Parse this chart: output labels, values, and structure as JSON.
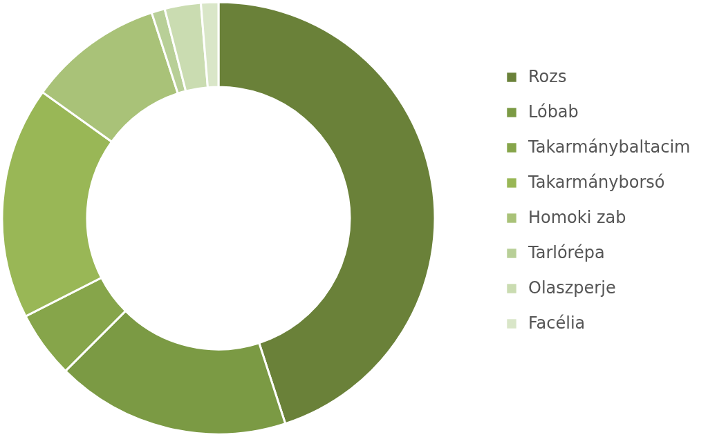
{
  "chart_data": {
    "type": "donut",
    "categories": [
      "Rozs",
      "Lóbab",
      "Takarmánybaltacim",
      "Takarmányborsó",
      "Homoki zab",
      "Tarlórépa",
      "Olaszperje",
      "Facélia"
    ],
    "values": [
      45.0,
      17.5,
      5.0,
      17.4,
      10.1,
      1.0,
      2.7,
      1.3
    ],
    "colors": [
      "#6a8139",
      "#7b9a44",
      "#86a54a",
      "#99b756",
      "#a9c278",
      "#b8cf97",
      "#cadcb1",
      "#d9e6c8"
    ],
    "legend": "right"
  }
}
